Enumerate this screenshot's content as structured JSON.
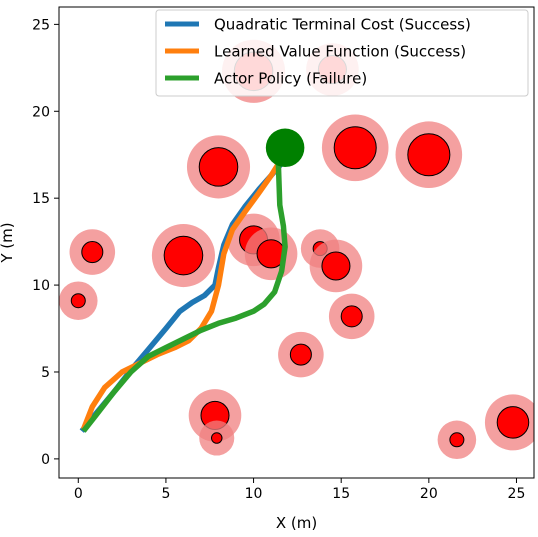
{
  "chart_data": {
    "type": "line",
    "title": "",
    "xlabel": "X (m)",
    "ylabel": "Y (m)",
    "xlim": [
      -1.1,
      26
    ],
    "ylim": [
      -1.1,
      26
    ],
    "xticks": [
      0,
      5,
      10,
      15,
      20,
      25
    ],
    "yticks": [
      0,
      5,
      10,
      15,
      20,
      25
    ],
    "grid": false,
    "legend_position": "top-right",
    "series": [
      {
        "name": "Quadratic Terminal Cost (Success)",
        "color": "#1f77b4",
        "x": [
          0.2,
          1.0,
          2.0,
          3.0,
          4.0,
          5.0,
          5.8,
          6.5,
          7.2,
          7.8,
          8.0,
          8.3,
          8.8,
          9.5,
          10.3,
          11.0,
          11.6
        ],
        "y": [
          1.6,
          2.6,
          3.8,
          5.1,
          6.3,
          7.5,
          8.5,
          9.0,
          9.4,
          10.0,
          11.0,
          12.3,
          13.5,
          14.5,
          15.5,
          16.3,
          17.0
        ]
      },
      {
        "name": "Learned Value Function (Success)",
        "color": "#ff7f0e",
        "x": [
          0.3,
          0.8,
          1.5,
          2.5,
          3.5,
          4.5,
          5.5,
          6.3,
          7.0,
          7.6,
          8.0,
          8.3,
          8.8,
          9.5,
          10.3,
          11.0,
          11.5
        ],
        "y": [
          1.7,
          3.0,
          4.1,
          5.0,
          5.5,
          6.0,
          6.4,
          6.8,
          7.5,
          8.5,
          10.0,
          11.8,
          13.2,
          14.2,
          15.3,
          16.3,
          17.1
        ]
      },
      {
        "name": "Actor Policy (Failure)",
        "color": "#2ca02c",
        "x": [
          0.3,
          1.0,
          2.0,
          3.0,
          4.0,
          5.0,
          6.0,
          7.0,
          8.0,
          9.0,
          10.0,
          10.6,
          11.2,
          11.6,
          11.8,
          11.7,
          11.5,
          11.4
        ],
        "y": [
          1.6,
          2.5,
          3.8,
          5.0,
          5.9,
          6.4,
          6.9,
          7.4,
          7.8,
          8.1,
          8.5,
          8.9,
          9.6,
          10.8,
          12.2,
          13.4,
          14.6,
          17.4
        ]
      }
    ],
    "obstacles": [
      {
        "x": 10.0,
        "y": 22.3,
        "r": 1.1
      },
      {
        "x": 14.5,
        "y": 22.4,
        "r": 0.8
      },
      {
        "x": 8.0,
        "y": 16.8,
        "r": 1.1
      },
      {
        "x": 15.8,
        "y": 17.9,
        "r": 1.2
      },
      {
        "x": 20.0,
        "y": 17.5,
        "r": 1.2
      },
      {
        "x": 0.8,
        "y": 11.9,
        "r": 0.6
      },
      {
        "x": 6.0,
        "y": 11.7,
        "r": 1.1
      },
      {
        "x": 10.0,
        "y": 12.6,
        "r": 0.8
      },
      {
        "x": 11.0,
        "y": 11.8,
        "r": 0.8
      },
      {
        "x": 13.8,
        "y": 12.1,
        "r": 0.4
      },
      {
        "x": 14.7,
        "y": 11.1,
        "r": 0.8
      },
      {
        "x": 0.0,
        "y": 9.1,
        "r": 0.4
      },
      {
        "x": 15.6,
        "y": 8.2,
        "r": 0.6
      },
      {
        "x": 12.7,
        "y": 6.0,
        "r": 0.6
      },
      {
        "x": 7.8,
        "y": 2.5,
        "r": 0.8
      },
      {
        "x": 7.9,
        "y": 1.2,
        "r": 0.3
      },
      {
        "x": 21.6,
        "y": 1.1,
        "r": 0.4
      },
      {
        "x": 24.8,
        "y": 2.1,
        "r": 0.9
      }
    ],
    "goal": {
      "x": 11.8,
      "y": 17.9,
      "r": 1.1,
      "color": "#008000"
    },
    "colors": {
      "obstacle": "#ff0000",
      "obstacle_halo": "#f08080"
    }
  }
}
